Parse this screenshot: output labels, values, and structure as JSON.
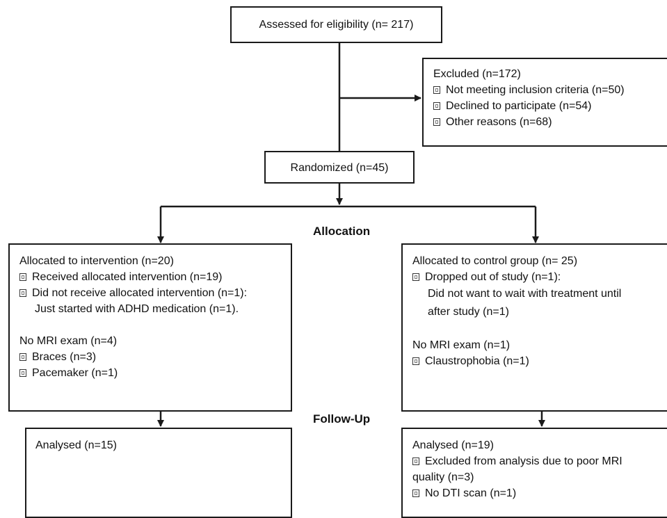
{
  "assessed": {
    "text": "Assessed for eligibility (n= 217)"
  },
  "excluded": {
    "title": "Excluded  (n=172)",
    "items": [
      "Not meeting inclusion criteria (n=50)",
      "Declined to participate (n=54)",
      "Other reasons (n=68)"
    ]
  },
  "randomized": {
    "text": "Randomized (n=45)"
  },
  "phases": {
    "allocation": "Allocation",
    "followup": "Follow-Up"
  },
  "intervention": {
    "title": "Allocated to intervention (n=20)",
    "items": [
      "Received allocated intervention (n=19)",
      "Did not receive allocated intervention (n=1):"
    ],
    "detail": "Just started with ADHD medication (n=1).",
    "mri_title": "No MRI exam (n=4)",
    "mri_items": [
      "Braces (n=3)",
      "Pacemaker (n=1)"
    ]
  },
  "control": {
    "title": "Allocated to control group (n= 25)",
    "items": [
      "Dropped out of study (n=1):"
    ],
    "detail_lines": [
      "Did not want to wait with treatment until",
      "after study (n=1)"
    ],
    "mri_title": "No MRI exam (n=1)",
    "mri_items": [
      "Claustrophobia (n=1)"
    ]
  },
  "analysed_intervention": {
    "title": "Analysed  (n=15)"
  },
  "analysed_control": {
    "title": "Analysed  (n=19)",
    "item1_lines": [
      "Excluded from analysis due to poor MRI",
      "quality (n=3)"
    ],
    "item2": "No DTI scan  (n=1)"
  }
}
